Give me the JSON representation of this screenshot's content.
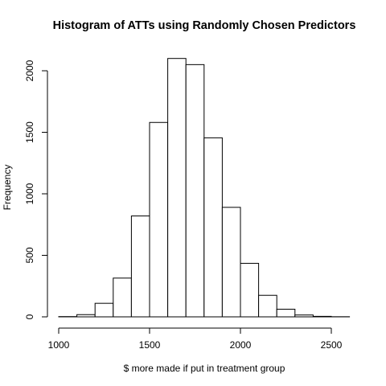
{
  "chart_data": {
    "type": "bar",
    "title": "Histogram of ATTs using Randomly Chosen Predictors",
    "xlabel": "$ more made if put in treatment group",
    "ylabel": "Frequency",
    "bin_width": 100,
    "bins": [
      {
        "x0": 1000,
        "x1": 1100,
        "count": 2
      },
      {
        "x0": 1100,
        "x1": 1200,
        "count": 18
      },
      {
        "x0": 1200,
        "x1": 1300,
        "count": 110
      },
      {
        "x0": 1300,
        "x1": 1400,
        "count": 315
      },
      {
        "x0": 1400,
        "x1": 1500,
        "count": 820
      },
      {
        "x0": 1500,
        "x1": 1600,
        "count": 1580
      },
      {
        "x0": 1600,
        "x1": 1700,
        "count": 2100
      },
      {
        "x0": 1700,
        "x1": 1800,
        "count": 2050
      },
      {
        "x0": 1800,
        "x1": 1900,
        "count": 1455
      },
      {
        "x0": 1900,
        "x1": 2000,
        "count": 890
      },
      {
        "x0": 2000,
        "x1": 2100,
        "count": 435
      },
      {
        "x0": 2100,
        "x1": 2200,
        "count": 175
      },
      {
        "x0": 2200,
        "x1": 2300,
        "count": 62
      },
      {
        "x0": 2300,
        "x1": 2400,
        "count": 15
      },
      {
        "x0": 2400,
        "x1": 2500,
        "count": 4
      },
      {
        "x0": 2500,
        "x1": 2600,
        "count": 1
      }
    ],
    "xlim": [
      1000,
      2600
    ],
    "ylim": [
      0,
      2100
    ],
    "x_ticks": [
      1000,
      1500,
      2000,
      2500
    ],
    "y_ticks": [
      0,
      500,
      1000,
      1500,
      2000
    ],
    "grid": false
  }
}
